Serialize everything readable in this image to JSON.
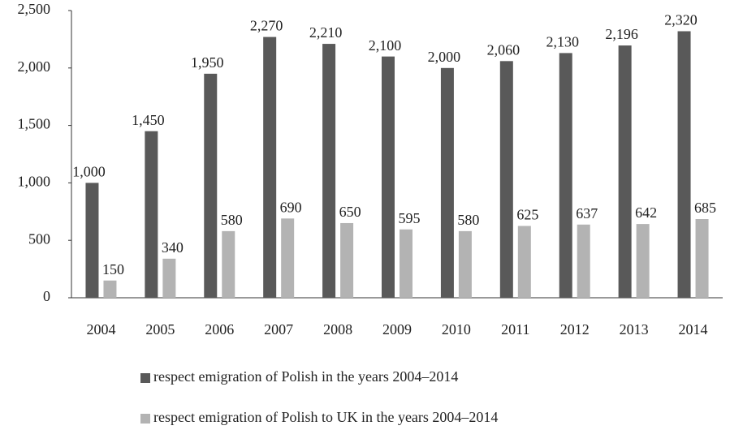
{
  "chart_data": {
    "type": "bar",
    "categories": [
      "2004",
      "2005",
      "2006",
      "2007",
      "2008",
      "2009",
      "2010",
      "2011",
      "2012",
      "2013",
      "2014"
    ],
    "series": [
      {
        "name": "respect emigration of Polish in the years 2004–2014",
        "color": "#595959",
        "values": [
          1000,
          1450,
          1950,
          2270,
          2210,
          2100,
          2000,
          2060,
          2130,
          2196,
          2320
        ],
        "value_labels": [
          "1,000",
          "1,450",
          "1,950",
          "2,270",
          "2,210",
          "2,100",
          "2,000",
          "2,060",
          "2,130",
          "2,196",
          "2,320"
        ]
      },
      {
        "name": "respect emigration of Polish to UK in the years 2004–2014",
        "color": "#b3b3b3",
        "values": [
          150,
          340,
          580,
          690,
          650,
          595,
          580,
          625,
          637,
          642,
          685
        ]
      }
    ],
    "ylim": [
      0,
      2500
    ],
    "yticks": [
      0,
      500,
      {
        "value": 1000,
        "label": "1,000"
      },
      {
        "value": 1500,
        "label": "1,500"
      },
      {
        "value": 2000,
        "label": "2,000"
      },
      {
        "value": 2500,
        "label": "2,500"
      }
    ],
    "grid": false,
    "legend": "bottom"
  }
}
